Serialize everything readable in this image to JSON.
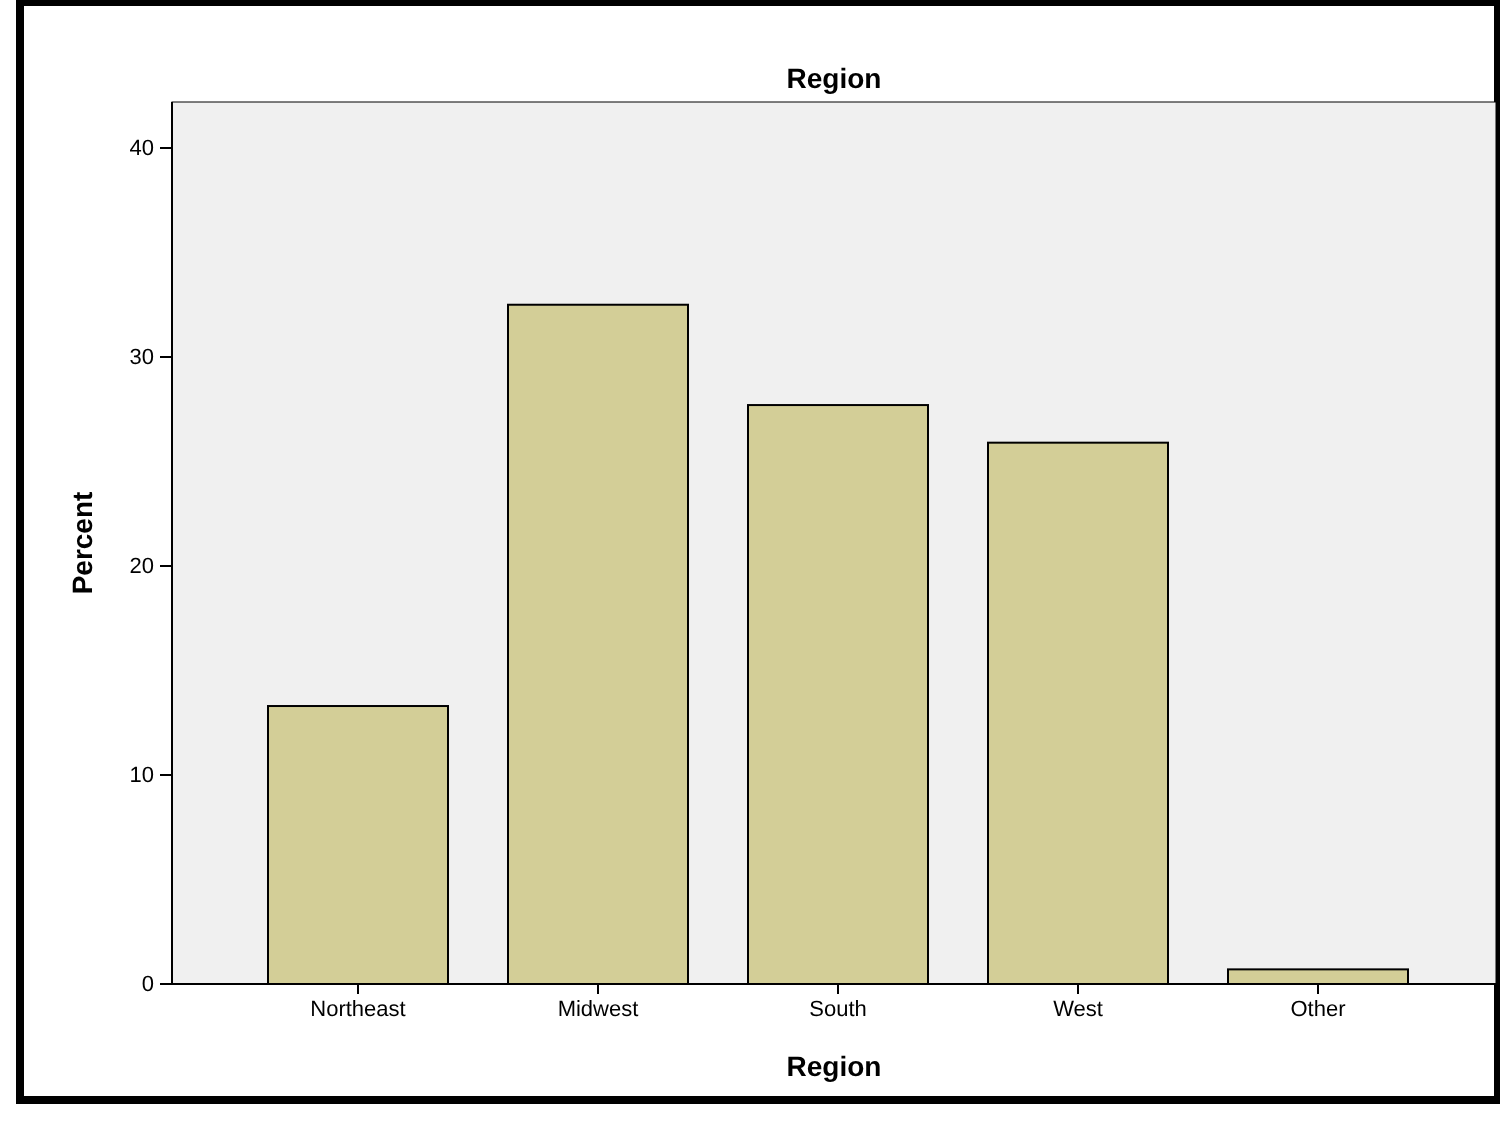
{
  "chart_data": {
    "type": "bar",
    "title": "Region",
    "xlabel": "Region",
    "ylabel": "Percent",
    "categories": [
      "Northeast",
      "Midwest",
      "South",
      "West",
      "Other"
    ],
    "values": [
      13.3,
      32.5,
      27.7,
      25.9,
      0.7
    ],
    "color": "#d3ce97",
    "ylim": [
      0,
      42.2
    ],
    "yticks": [
      0,
      10,
      20,
      30,
      40
    ],
    "grid": false
  }
}
